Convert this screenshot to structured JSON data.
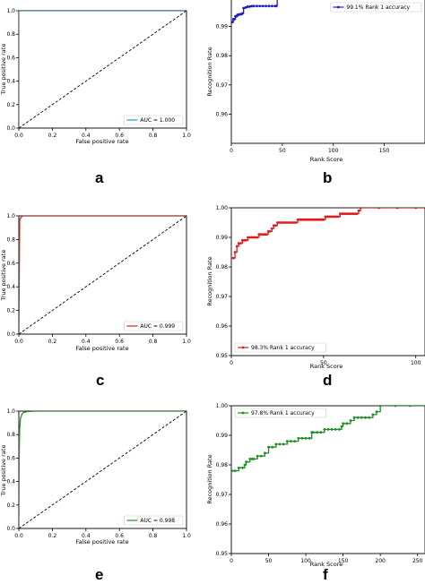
{
  "chart_data": [
    {
      "id": "a",
      "type": "line",
      "title": "",
      "xlabel": "False positive rate",
      "ylabel": "True positive rate",
      "xlim": [
        0,
        1
      ],
      "ylim": [
        0,
        1
      ],
      "xticks": [
        "0.0",
        "0.2",
        "0.4",
        "0.6",
        "0.8",
        "1.0"
      ],
      "yticks": [
        "0.0",
        "0.2",
        "0.4",
        "0.6",
        "0.8",
        "1.0"
      ],
      "legend": "lower-right",
      "grid": false,
      "series": [
        {
          "name": "AUC = 1.000",
          "color": "#1f9bb4",
          "x": [
            0,
            0,
            1
          ],
          "y": [
            0,
            1,
            1
          ]
        },
        {
          "color": "#000000",
          "dashed": true,
          "x": [
            0,
            1
          ],
          "y": [
            0,
            1
          ]
        }
      ]
    },
    {
      "id": "b",
      "type": "line",
      "title": "",
      "xlabel": "Rank Score",
      "ylabel": "Recognition Rate",
      "xlim": [
        0,
        190
      ],
      "ylim": [
        0.95,
        1.0
      ],
      "xticks": [
        "0",
        "50",
        "100",
        "150"
      ],
      "yticks": [
        "0.96",
        "0.97",
        "0.98",
        "0.99"
      ],
      "legend": "top-right",
      "grid": false,
      "series": [
        {
          "name": "99.1% Rank 1 accuracy",
          "color": "#1f1fbf",
          "marker": "dot",
          "x": [
            1,
            2,
            3,
            4,
            5,
            6,
            7,
            8,
            9,
            10,
            11,
            12,
            14,
            16,
            18,
            20,
            22,
            25,
            28,
            31,
            34,
            37,
            40,
            43,
            44,
            45,
            46,
            50,
            60,
            80,
            100,
            120,
            140,
            160,
            180,
            190
          ],
          "y": [
            0.9915,
            0.9925,
            0.9925,
            0.9935,
            0.9935,
            0.994,
            0.994,
            0.9942,
            0.9942,
            0.9942,
            0.9945,
            0.9963,
            0.9965,
            0.9968,
            0.9968,
            0.997,
            0.997,
            0.997,
            0.997,
            0.997,
            0.997,
            0.997,
            0.997,
            0.997,
            0.997,
            1.0,
            1.0,
            1.0,
            1.0,
            1.0,
            1.0,
            1.0,
            1.0,
            1.0,
            1.0,
            1.0
          ]
        }
      ]
    },
    {
      "id": "c",
      "type": "line",
      "title": "",
      "xlabel": "False positive rate",
      "ylabel": "True positive rate",
      "xlim": [
        0,
        1
      ],
      "ylim": [
        0,
        1
      ],
      "xticks": [
        "0.0",
        "0.2",
        "0.4",
        "0.6",
        "0.8",
        "1.0"
      ],
      "yticks": [
        "0.0",
        "0.2",
        "0.4",
        "0.6",
        "0.8",
        "1.0"
      ],
      "legend": "lower-right",
      "grid": false,
      "series": [
        {
          "name": "AUC = 0.999",
          "color": "#e31a1c",
          "x": [
            0,
            0.005,
            0.02,
            1
          ],
          "y": [
            0,
            0.97,
            1,
            1
          ]
        },
        {
          "color": "#000000",
          "dashed": true,
          "x": [
            0,
            1
          ],
          "y": [
            0,
            1
          ]
        }
      ]
    },
    {
      "id": "d",
      "type": "line",
      "title": "",
      "xlabel": "Rank Score",
      "ylabel": "Recognition Rate",
      "xlim": [
        0,
        105
      ],
      "ylim": [
        0.95,
        1.0
      ],
      "xticks": [
        "0",
        "50",
        "100"
      ],
      "yticks": [
        "0.95",
        "0.96",
        "0.97",
        "0.98",
        "0.99",
        "1.00"
      ],
      "legend": "lower-left",
      "grid": false,
      "series": [
        {
          "name": "98.3% Rank 1 accuracy",
          "color": "#e31a1c",
          "marker": "dot",
          "x": [
            1,
            2,
            3,
            4,
            5,
            6,
            7,
            8,
            9,
            10,
            11,
            12,
            13,
            14,
            15,
            16,
            17,
            18,
            19,
            20,
            21,
            22,
            23,
            24,
            25,
            26,
            27,
            28,
            29,
            30,
            31,
            32,
            33,
            34,
            35,
            36,
            37,
            38,
            39,
            40,
            41,
            42,
            43,
            44,
            45,
            46,
            47,
            48,
            49,
            50,
            51,
            52,
            53,
            54,
            55,
            56,
            57,
            58,
            59,
            60,
            61,
            62,
            63,
            64,
            65,
            66,
            67,
            68,
            69,
            70,
            80,
            90,
            100,
            105
          ],
          "y": [
            0.983,
            0.985,
            0.987,
            0.988,
            0.988,
            0.989,
            0.989,
            0.989,
            0.99,
            0.99,
            0.99,
            0.99,
            0.99,
            0.99,
            0.991,
            0.991,
            0.991,
            0.991,
            0.991,
            0.992,
            0.992,
            0.993,
            0.994,
            0.994,
            0.995,
            0.995,
            0.995,
            0.995,
            0.995,
            0.995,
            0.995,
            0.995,
            0.995,
            0.995,
            0.995,
            0.996,
            0.996,
            0.996,
            0.996,
            0.996,
            0.996,
            0.996,
            0.996,
            0.996,
            0.996,
            0.996,
            0.996,
            0.996,
            0.996,
            0.996,
            0.997,
            0.997,
            0.997,
            0.997,
            0.997,
            0.997,
            0.997,
            0.997,
            0.998,
            0.998,
            0.998,
            0.998,
            0.998,
            0.998,
            0.998,
            0.998,
            0.998,
            0.998,
            0.999,
            1.0,
            1.0,
            1.0,
            1.0,
            1.0
          ]
        }
      ]
    },
    {
      "id": "e",
      "type": "line",
      "title": "",
      "xlabel": "False positive rate",
      "ylabel": "True positive rate",
      "xlim": [
        0,
        1
      ],
      "ylim": [
        0,
        1
      ],
      "xticks": [
        "0.0",
        "0.2",
        "0.4",
        "0.6",
        "0.8",
        "1.0"
      ],
      "yticks": [
        "0.0",
        "0.2",
        "0.4",
        "0.6",
        "0.8",
        "1.0"
      ],
      "legend": "lower-right",
      "grid": false,
      "series": [
        {
          "name": "AUC = 0.998",
          "color": "#2e8b2e",
          "x": [
            0,
            0.002,
            0.005,
            0.01,
            0.02,
            0.03,
            0.05,
            0.1,
            1
          ],
          "y": [
            0,
            0.6,
            0.85,
            0.94,
            0.98,
            0.99,
            0.995,
            1,
            1
          ]
        },
        {
          "color": "#000000",
          "dashed": true,
          "x": [
            0,
            1
          ],
          "y": [
            0,
            1
          ]
        }
      ]
    },
    {
      "id": "f",
      "type": "line",
      "title": "",
      "xlabel": "Rank Score",
      "ylabel": "Recognition Rate",
      "xlim": [
        0,
        260
      ],
      "ylim": [
        0.95,
        1.0
      ],
      "xticks": [
        "0",
        "50",
        "100",
        "150",
        "200",
        "250"
      ],
      "yticks": [
        "0.95",
        "0.96",
        "0.97",
        "0.98",
        "0.99",
        "1.00"
      ],
      "legend": "top-left",
      "grid": false,
      "series": [
        {
          "name": "97.8% Rank 1 accuracy",
          "color": "#1f8f1f",
          "marker": "dot",
          "x": [
            1,
            5,
            10,
            15,
            18,
            20,
            25,
            28,
            30,
            35,
            40,
            45,
            50,
            55,
            60,
            65,
            70,
            75,
            80,
            85,
            90,
            95,
            100,
            105,
            108,
            110,
            115,
            120,
            125,
            130,
            135,
            140,
            145,
            148,
            150,
            155,
            160,
            165,
            170,
            175,
            180,
            185,
            190,
            195,
            200,
            220,
            240,
            260
          ],
          "y": [
            0.978,
            0.978,
            0.979,
            0.979,
            0.98,
            0.981,
            0.982,
            0.982,
            0.982,
            0.983,
            0.983,
            0.984,
            0.986,
            0.986,
            0.987,
            0.987,
            0.987,
            0.988,
            0.988,
            0.988,
            0.989,
            0.989,
            0.989,
            0.989,
            0.991,
            0.991,
            0.991,
            0.991,
            0.992,
            0.992,
            0.992,
            0.992,
            0.992,
            0.993,
            0.994,
            0.994,
            0.995,
            0.996,
            0.996,
            0.996,
            0.996,
            0.996,
            0.997,
            0.998,
            1.0,
            1.0,
            1.0,
            1.0
          ]
        }
      ]
    }
  ],
  "panel_letters": [
    "a",
    "b",
    "c",
    "d",
    "e",
    "f"
  ]
}
